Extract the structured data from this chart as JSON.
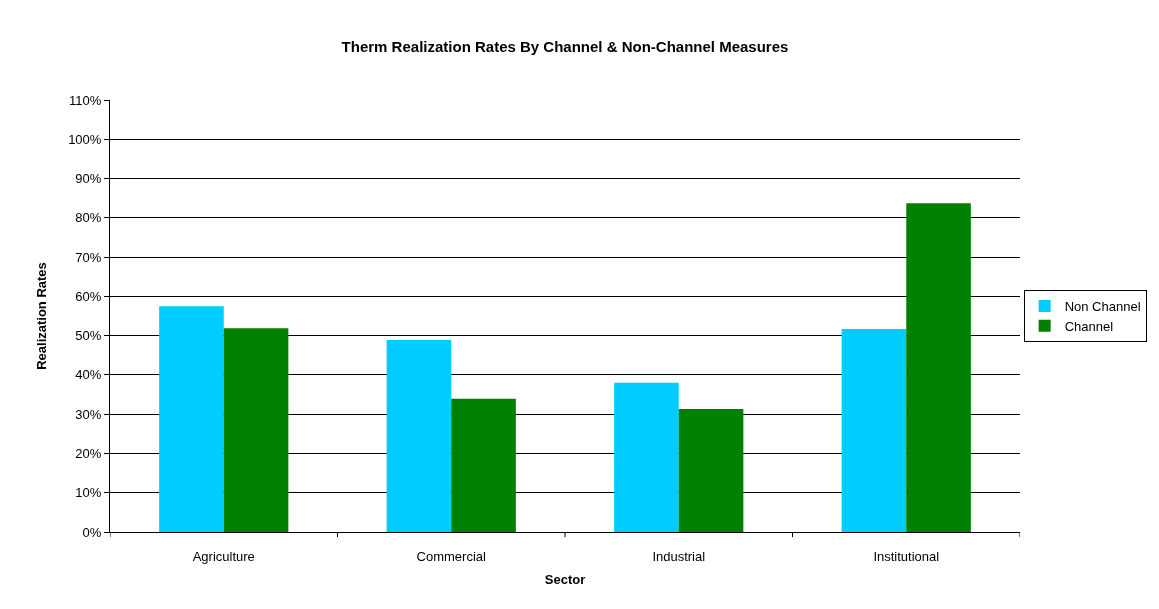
{
  "chart_data": {
    "type": "bar",
    "title": "Therm Realization Rates By Channel & Non-Channel Measures",
    "xlabel": "Sector",
    "ylabel": "Realization Rates",
    "categories": [
      "Agriculture",
      "Commercial",
      "Industrial",
      "Institutional"
    ],
    "series": [
      {
        "name": "Non Channel",
        "color": "#00ccff",
        "values": [
          57.5,
          48.9,
          38.0,
          51.7
        ]
      },
      {
        "name": "Channel",
        "color": "#008000",
        "values": [
          51.9,
          33.9,
          31.3,
          83.7
        ]
      }
    ],
    "ylim": [
      0,
      110
    ],
    "yticks": [
      {
        "value": 0,
        "label": "0%"
      },
      {
        "value": 10,
        "label": "10%"
      },
      {
        "value": 20,
        "label": "20%"
      },
      {
        "value": 30,
        "label": "30%"
      },
      {
        "value": 40,
        "label": "40%"
      },
      {
        "value": 50,
        "label": "50%"
      },
      {
        "value": 60,
        "label": "60%"
      },
      {
        "value": 70,
        "label": "70%"
      },
      {
        "value": 80,
        "label": "80%"
      },
      {
        "value": 90,
        "label": "90%"
      },
      {
        "value": 100,
        "label": "100%"
      },
      {
        "value": 110,
        "label": "110%"
      }
    ],
    "grid": "y",
    "legend": "right"
  }
}
